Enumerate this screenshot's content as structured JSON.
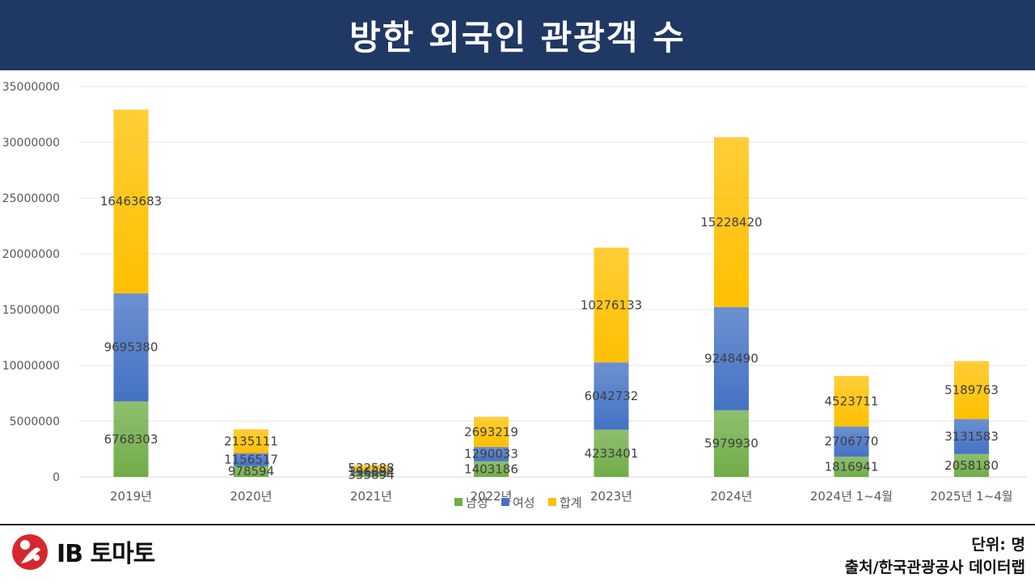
{
  "title": "방한 외국인 관광객 수",
  "logo": {
    "text": "IB 토마토"
  },
  "footer": {
    "unit": "단위: 명",
    "source": "출처/한국관광공사 데이터랩"
  },
  "colors": {
    "title_bg": "#1f3864",
    "male": "#70ad47",
    "female": "#4472c4",
    "total": "#ffc000"
  },
  "chart_data": {
    "type": "bar",
    "stacked": true,
    "categories": [
      "2019년",
      "2020년",
      "2021년",
      "2022년",
      "2023년",
      "2024년",
      "2024년 1~4월",
      "2025년 1~4월"
    ],
    "series": [
      {
        "name": "남성",
        "color": "#70ad47",
        "values": [
          6768303,
          978594,
          335894,
          1403186,
          4233401,
          5979930,
          1816941,
          2058180
        ]
      },
      {
        "name": "여성",
        "color": "#4472c4",
        "values": [
          9695380,
          1156517,
          196694,
          1290033,
          6042732,
          9248490,
          2706770,
          3131583
        ]
      },
      {
        "name": "합계",
        "color": "#ffc000",
        "values": [
          16463683,
          2135111,
          532588,
          2693219,
          10276133,
          15228420,
          4523711,
          5189763
        ]
      }
    ],
    "yticks": [
      "0",
      "5000000",
      "10000000",
      "15000000",
      "20000000",
      "25000000",
      "30000000",
      "35000000"
    ],
    "ylim": [
      0,
      35000000
    ],
    "grid": true,
    "legend": "bottom"
  }
}
